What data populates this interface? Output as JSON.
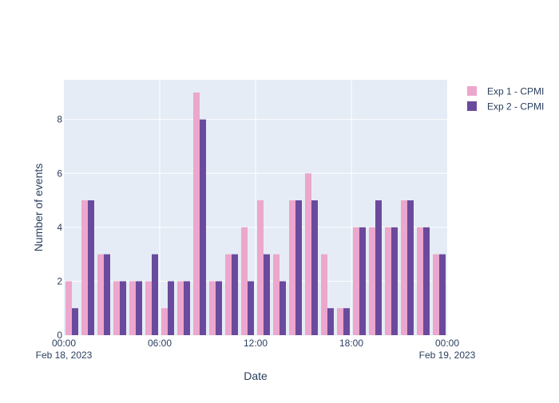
{
  "chart_data": {
    "type": "bar",
    "xlabel": "Date",
    "ylabel": "Number of events",
    "x": [
      "00:00",
      "01:00",
      "02:00",
      "03:00",
      "04:00",
      "05:00",
      "06:00",
      "07:00",
      "08:00",
      "09:00",
      "10:00",
      "11:00",
      "12:00",
      "13:00",
      "14:00",
      "15:00",
      "16:00",
      "17:00",
      "18:00",
      "19:00",
      "20:00",
      "21:00",
      "22:00",
      "23:00"
    ],
    "x_range_hours": [
      0,
      24
    ],
    "ylim": [
      0,
      9.47
    ],
    "y_ticks": [
      0,
      2,
      4,
      6,
      8
    ],
    "x_ticks": [
      {
        "hour": 0,
        "label": "00:00",
        "sublabel": "Feb 18, 2023"
      },
      {
        "hour": 6,
        "label": "06:00",
        "sublabel": ""
      },
      {
        "hour": 12,
        "label": "12:00",
        "sublabel": ""
      },
      {
        "hour": 18,
        "label": "18:00",
        "sublabel": ""
      },
      {
        "hour": 24,
        "label": "00:00",
        "sublabel": "Feb 19, 2023"
      }
    ],
    "grid": true,
    "legend_position": "top-right",
    "series": [
      {
        "name": "Exp 1 - CPMI",
        "color": "#eda6cc",
        "values": [
          2,
          5,
          3,
          2,
          2,
          2,
          1,
          2,
          9,
          2,
          3,
          4,
          5,
          3,
          5,
          6,
          3,
          1,
          4,
          4,
          4,
          5,
          4,
          3
        ]
      },
      {
        "name": "Exp 2 - CPMI",
        "color": "#6a4a9c",
        "values": [
          1,
          5,
          3,
          2,
          2,
          3,
          2,
          2,
          8,
          2,
          3,
          2,
          3,
          2,
          5,
          5,
          1,
          1,
          4,
          5,
          4,
          5,
          4,
          3
        ]
      }
    ]
  }
}
